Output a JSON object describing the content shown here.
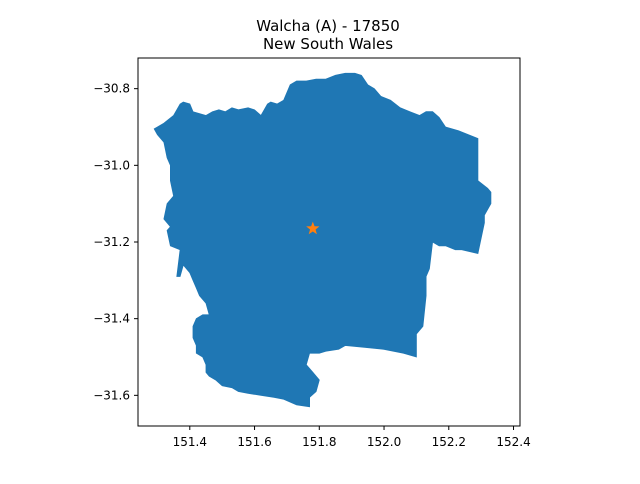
{
  "title": {
    "line1": "Walcha (A) - 17850",
    "line2": "New South Wales"
  },
  "colors": {
    "region_fill": "#1f77b4",
    "marker": "#ff7f0e",
    "axes": "#000000",
    "background": "#ffffff"
  },
  "map": {
    "type": "choropleth-outline",
    "grid": false,
    "x_axis": {
      "range": [
        151.24,
        152.42
      ],
      "ticks": [
        151.4,
        151.6,
        151.8,
        152.0,
        152.2,
        152.4
      ],
      "tick_labels": [
        "151.4",
        "151.6",
        "151.8",
        "152.0",
        "152.2",
        "152.4"
      ]
    },
    "y_axis": {
      "range": [
        -31.68,
        -30.72
      ],
      "ticks": [
        -30.8,
        -31.0,
        -31.2,
        -31.4,
        -31.6
      ],
      "tick_labels": [
        "−30.8",
        "−31.0",
        "−31.2",
        "−31.4",
        "−31.6"
      ]
    },
    "region_boundary": [
      [
        151.29,
        -30.905
      ],
      [
        151.32,
        -30.89
      ],
      [
        151.35,
        -30.87
      ],
      [
        151.37,
        -30.84
      ],
      [
        151.38,
        -30.835
      ],
      [
        151.4,
        -30.84
      ],
      [
        151.41,
        -30.86
      ],
      [
        151.43,
        -30.865
      ],
      [
        151.45,
        -30.87
      ],
      [
        151.47,
        -30.86
      ],
      [
        151.49,
        -30.855
      ],
      [
        151.51,
        -30.86
      ],
      [
        151.53,
        -30.85
      ],
      [
        151.55,
        -30.855
      ],
      [
        151.58,
        -30.85
      ],
      [
        151.6,
        -30.855
      ],
      [
        151.62,
        -30.87
      ],
      [
        151.64,
        -30.84
      ],
      [
        151.65,
        -30.835
      ],
      [
        151.67,
        -30.84
      ],
      [
        151.69,
        -30.83
      ],
      [
        151.71,
        -30.79
      ],
      [
        151.73,
        -30.78
      ],
      [
        151.76,
        -30.78
      ],
      [
        151.79,
        -30.775
      ],
      [
        151.82,
        -30.775
      ],
      [
        151.85,
        -30.765
      ],
      [
        151.88,
        -30.76
      ],
      [
        151.91,
        -30.76
      ],
      [
        151.93,
        -30.765
      ],
      [
        151.95,
        -30.79
      ],
      [
        151.97,
        -30.8
      ],
      [
        151.99,
        -30.82
      ],
      [
        152.02,
        -30.83
      ],
      [
        152.05,
        -30.85
      ],
      [
        152.08,
        -30.86
      ],
      [
        152.11,
        -30.87
      ],
      [
        152.13,
        -30.86
      ],
      [
        152.15,
        -30.86
      ],
      [
        152.17,
        -30.875
      ],
      [
        152.19,
        -30.9
      ],
      [
        152.23,
        -30.91
      ],
      [
        152.29,
        -30.93
      ],
      [
        152.29,
        -31.04
      ],
      [
        152.32,
        -31.06
      ],
      [
        152.33,
        -31.07
      ],
      [
        152.33,
        -31.1
      ],
      [
        152.31,
        -31.13
      ],
      [
        152.31,
        -31.15
      ],
      [
        152.29,
        -31.23
      ],
      [
        152.24,
        -31.22
      ],
      [
        152.22,
        -31.22
      ],
      [
        152.19,
        -31.21
      ],
      [
        152.17,
        -31.21
      ],
      [
        152.15,
        -31.2
      ],
      [
        152.14,
        -31.27
      ],
      [
        152.13,
        -31.29
      ],
      [
        152.13,
        -31.34
      ],
      [
        152.12,
        -31.42
      ],
      [
        152.1,
        -31.44
      ],
      [
        152.1,
        -31.5
      ],
      [
        152.06,
        -31.49
      ],
      [
        152.0,
        -31.48
      ],
      [
        151.94,
        -31.475
      ],
      [
        151.88,
        -31.47
      ],
      [
        151.86,
        -31.48
      ],
      [
        151.82,
        -31.485
      ],
      [
        151.8,
        -31.49
      ],
      [
        151.77,
        -31.49
      ],
      [
        151.76,
        -31.52
      ],
      [
        151.78,
        -31.54
      ],
      [
        151.8,
        -31.56
      ],
      [
        151.79,
        -31.59
      ],
      [
        151.77,
        -31.605
      ],
      [
        151.77,
        -31.63
      ],
      [
        151.73,
        -31.625
      ],
      [
        151.69,
        -31.61
      ],
      [
        151.66,
        -31.605
      ],
      [
        151.62,
        -31.6
      ],
      [
        151.58,
        -31.595
      ],
      [
        151.55,
        -31.59
      ],
      [
        151.53,
        -31.58
      ],
      [
        151.5,
        -31.575
      ],
      [
        151.48,
        -31.56
      ],
      [
        151.46,
        -31.55
      ],
      [
        151.45,
        -31.54
      ],
      [
        151.45,
        -31.52
      ],
      [
        151.44,
        -31.5
      ],
      [
        151.42,
        -31.49
      ],
      [
        151.42,
        -31.47
      ],
      [
        151.41,
        -31.45
      ],
      [
        151.41,
        -31.42
      ],
      [
        151.42,
        -31.4
      ],
      [
        151.44,
        -31.39
      ],
      [
        151.46,
        -31.39
      ],
      [
        151.45,
        -31.36
      ],
      [
        151.43,
        -31.34
      ],
      [
        151.42,
        -31.32
      ],
      [
        151.41,
        -31.3
      ],
      [
        151.4,
        -31.28
      ],
      [
        151.38,
        -31.26
      ],
      [
        151.37,
        -31.29
      ],
      [
        151.36,
        -31.29
      ],
      [
        151.37,
        -31.22
      ],
      [
        151.34,
        -31.21
      ],
      [
        151.33,
        -31.17
      ],
      [
        151.34,
        -31.16
      ],
      [
        151.32,
        -31.14
      ],
      [
        151.33,
        -31.1
      ],
      [
        151.35,
        -31.08
      ],
      [
        151.34,
        -31.04
      ],
      [
        151.34,
        -31.0
      ],
      [
        151.33,
        -30.98
      ],
      [
        151.32,
        -30.94
      ],
      [
        151.3,
        -30.92
      ]
    ],
    "centroid_marker": {
      "symbol": "star",
      "lon": 151.78,
      "lat": -31.165
    }
  }
}
